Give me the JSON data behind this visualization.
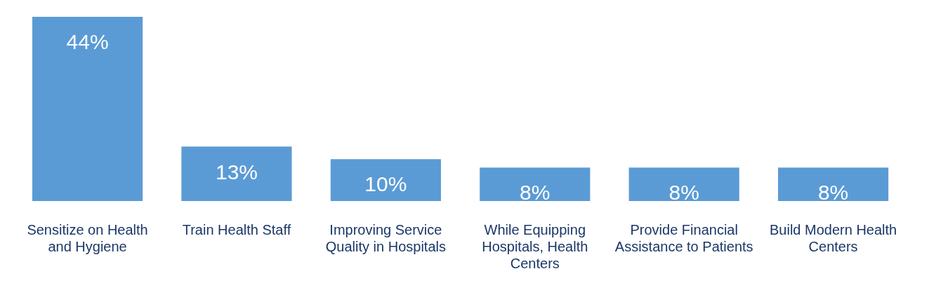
{
  "chart_data": {
    "type": "bar",
    "categories": [
      "Sensitize on Health and Hygiene",
      "Train Health Staff",
      "Improving Service Quality in Hospitals",
      "While Equipping Hospitals, Health Centers",
      "Provide Financial Assistance to Patients",
      "Build Modern Health Centers"
    ],
    "values": [
      44,
      13,
      10,
      8,
      8,
      8
    ],
    "value_labels": [
      "44%",
      "13%",
      "10%",
      "8%",
      "8%",
      "8%"
    ],
    "color": "#5b9bd5",
    "grid": false,
    "legend": false
  }
}
